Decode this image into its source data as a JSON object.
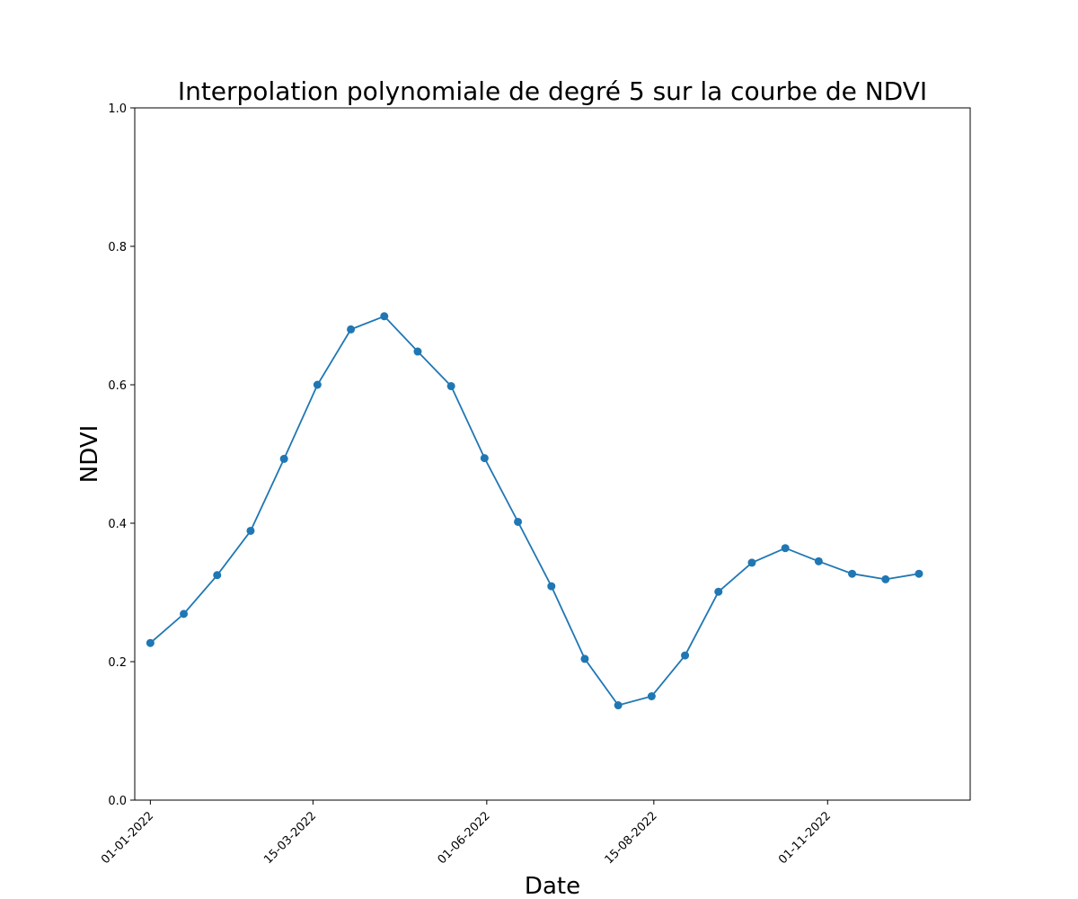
{
  "chart_data": {
    "type": "line",
    "title": "Interpolation polynomiale de degré 5 sur la courbe de NDVI",
    "xlabel": "Date",
    "ylabel": "NDVI",
    "ylim": [
      0.0,
      1.0
    ],
    "xlim": [
      "2021-12-25",
      "2023-01-04"
    ],
    "y_ticks": [
      0.0,
      0.2,
      0.4,
      0.6,
      0.8,
      1.0
    ],
    "y_tick_labels": [
      "0.0",
      "0.2",
      "0.4",
      "0.6",
      "0.8",
      "1.0"
    ],
    "x_ticks": [
      "2022-01-01",
      "2022-03-15",
      "2022-06-01",
      "2022-08-15",
      "2022-11-01"
    ],
    "x_tick_labels": [
      "01-01-2022",
      "15-03-2022",
      "01-06-2022",
      "15-08-2022",
      "01-11-2022"
    ],
    "grid": false,
    "line_color": "#1f77b4",
    "marker": "circle",
    "series": [
      {
        "x": [
          "2022-01-01",
          "2022-01-16",
          "2022-01-31",
          "2022-02-15",
          "2022-03-02",
          "2022-03-17",
          "2022-04-01",
          "2022-04-16",
          "2022-05-01",
          "2022-05-16",
          "2022-05-31",
          "2022-06-15",
          "2022-06-30",
          "2022-07-15",
          "2022-07-30",
          "2022-08-14",
          "2022-08-29",
          "2022-09-13",
          "2022-09-28",
          "2022-10-13",
          "2022-10-28",
          "2022-11-12",
          "2022-11-27",
          "2022-12-12"
        ],
        "values": [
          0.227,
          0.269,
          0.325,
          0.389,
          0.493,
          0.6,
          0.68,
          0.699,
          0.648,
          0.598,
          0.494,
          0.402,
          0.309,
          0.204,
          0.137,
          0.15,
          0.209,
          0.301,
          0.343,
          0.364,
          0.345,
          0.327,
          0.319,
          0.327
        ]
      }
    ]
  }
}
